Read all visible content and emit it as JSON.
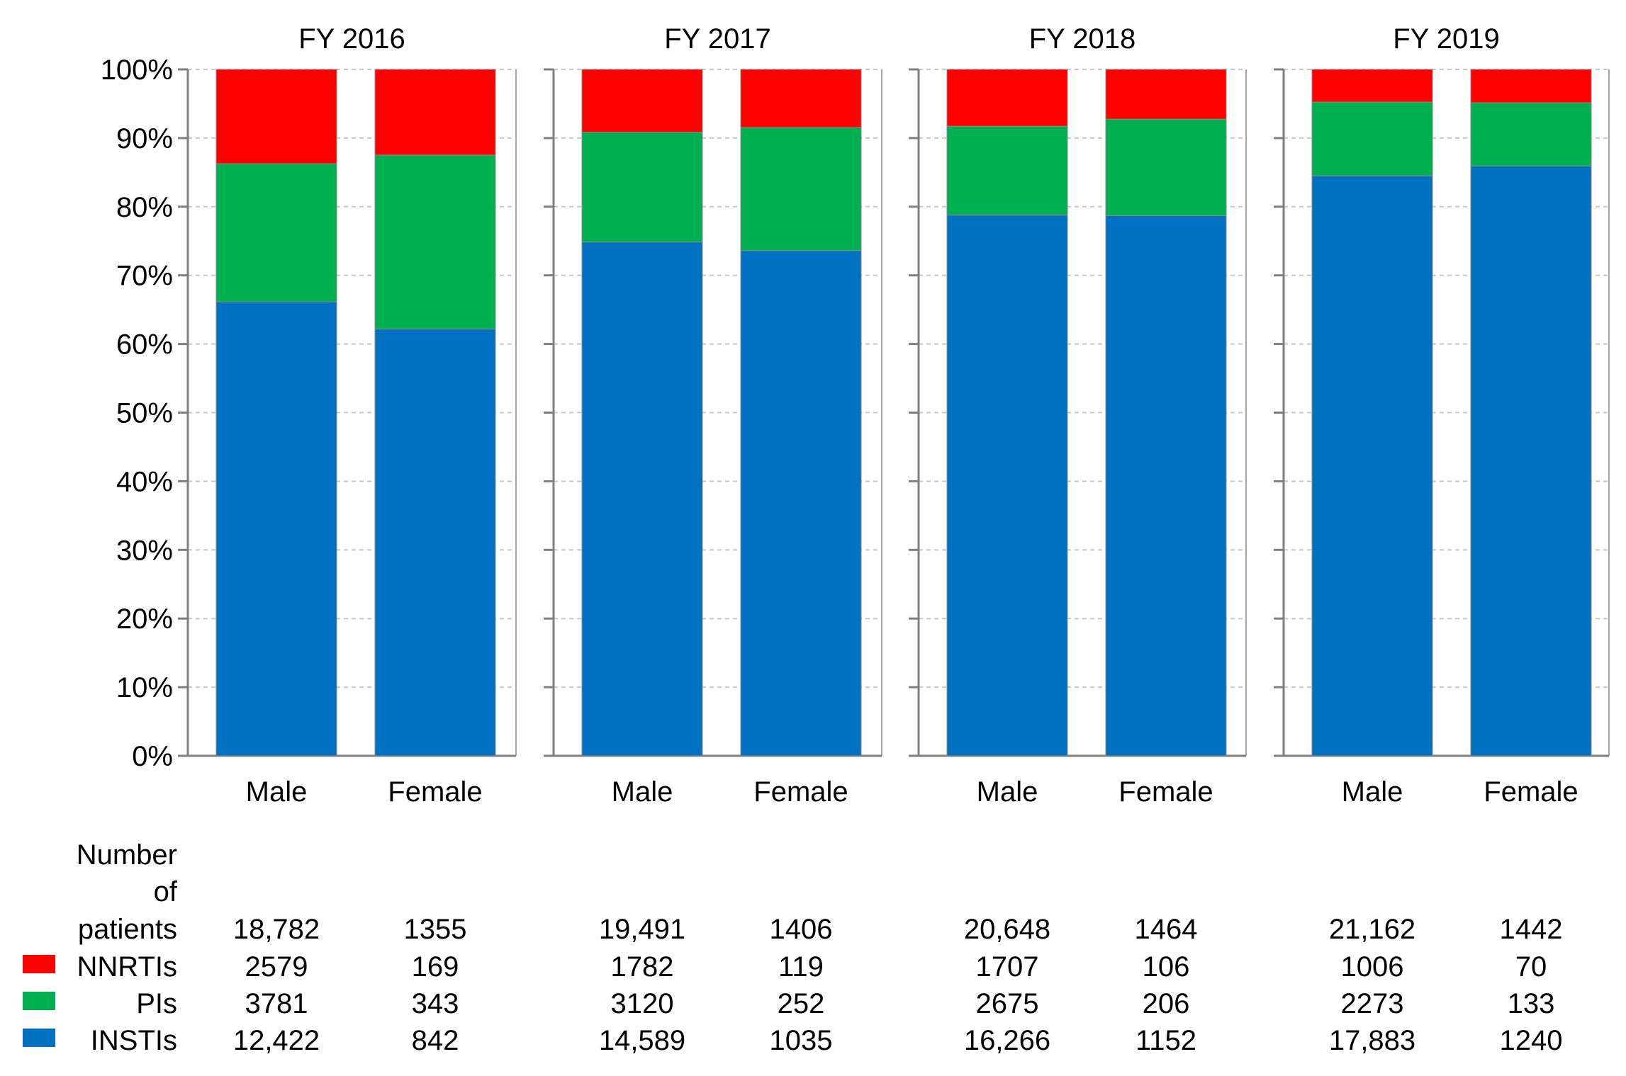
{
  "chart_data": {
    "type": "bar",
    "stacked": true,
    "normalized": true,
    "y_axis": {
      "ticks": [
        "0%",
        "10%",
        "20%",
        "30%",
        "40%",
        "50%",
        "60%",
        "70%",
        "80%",
        "90%",
        "100%"
      ],
      "ylim": [
        0,
        100
      ]
    },
    "table_header": [
      "Number",
      "of",
      "patients"
    ],
    "series": [
      {
        "name": "NNRTIs",
        "color": "#ff0000"
      },
      {
        "name": "PIs",
        "color": "#00b050"
      },
      {
        "name": "INSTIs",
        "color": "#0070c0"
      }
    ],
    "panels": [
      {
        "title": "FY 2016",
        "bars": [
          {
            "label": "Male",
            "total": "18,782",
            "counts": [
              "2579",
              "3781",
              "12,422"
            ],
            "INSTIs": 12422,
            "PIs": 3781,
            "NNRTIs": 2579
          },
          {
            "label": "Female",
            "total": "1355",
            "counts": [
              "169",
              "343",
              "842"
            ],
            "INSTIs": 842,
            "PIs": 343,
            "NNRTIs": 169
          }
        ]
      },
      {
        "title": "FY 2017",
        "bars": [
          {
            "label": "Male",
            "total": "19,491",
            "counts": [
              "1782",
              "3120",
              "14,589"
            ],
            "INSTIs": 14589,
            "PIs": 3120,
            "NNRTIs": 1782
          },
          {
            "label": "Female",
            "total": "1406",
            "counts": [
              "119",
              "252",
              "1035"
            ],
            "INSTIs": 1035,
            "PIs": 252,
            "NNRTIs": 119
          }
        ]
      },
      {
        "title": "FY 2018",
        "bars": [
          {
            "label": "Male",
            "total": "20,648",
            "counts": [
              "1707",
              "2675",
              "16,266"
            ],
            "INSTIs": 16266,
            "PIs": 2675,
            "NNRTIs": 1707
          },
          {
            "label": "Female",
            "total": "1464",
            "counts": [
              "106",
              "206",
              "1152"
            ],
            "INSTIs": 1152,
            "PIs": 206,
            "NNRTIs": 106
          }
        ]
      },
      {
        "title": "FY 2019",
        "bars": [
          {
            "label": "Male",
            "total": "21,162",
            "counts": [
              "1006",
              "2273",
              "17,883"
            ],
            "INSTIs": 17883,
            "PIs": 2273,
            "NNRTIs": 1006
          },
          {
            "label": "Female",
            "total": "1442",
            "counts": [
              "70",
              "133",
              "1240"
            ],
            "INSTIs": 1240,
            "PIs": 133,
            "NNRTIs": 70
          }
        ]
      }
    ]
  }
}
